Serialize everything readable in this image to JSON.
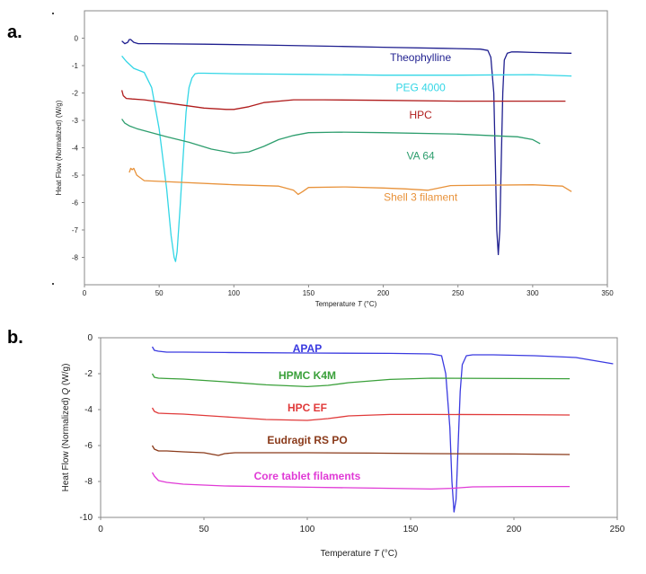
{
  "chart_data": [
    {
      "type": "line",
      "panel_label": "a.",
      "xlabel": "Temperature",
      "xlabel_var": "T",
      "xlabel_unit": "(°C)",
      "ylabel": "Heat Flow (Normalized) (W/g)",
      "xlim": [
        0,
        350
      ],
      "ylim": [
        -9,
        1
      ],
      "xticks": [
        0,
        50,
        100,
        150,
        200,
        250,
        300,
        350
      ],
      "yticks": [
        0,
        -1,
        -2,
        -3,
        -4,
        -5,
        -6,
        -7,
        -8
      ],
      "grid": false,
      "series": [
        {
          "name": "Theophylline",
          "color": "#1f1f8f",
          "label_at": [
            225,
            -0.7
          ],
          "x": [
            25,
            27,
            29,
            30,
            31,
            33,
            36,
            45,
            80,
            120,
            170,
            200,
            240,
            265,
            270,
            272,
            274,
            275,
            276,
            277,
            278,
            279,
            280,
            281,
            283,
            286,
            290,
            300,
            326
          ],
          "y": [
            -0.1,
            -0.2,
            -0.15,
            -0.05,
            -0.05,
            -0.15,
            -0.2,
            -0.2,
            -0.22,
            -0.25,
            -0.3,
            -0.33,
            -0.37,
            -0.4,
            -0.45,
            -0.7,
            -2.0,
            -4.5,
            -7.0,
            -7.9,
            -7.0,
            -4.5,
            -2.0,
            -0.8,
            -0.55,
            -0.5,
            -0.5,
            -0.52,
            -0.55
          ]
        },
        {
          "name": "PEG 4000",
          "color": "#33d6e6",
          "label_at": [
            225,
            -1.8
          ],
          "x": [
            25,
            28,
            33,
            40,
            45,
            50,
            55,
            58,
            60,
            61,
            62,
            64,
            66,
            68,
            70,
            72,
            74,
            76,
            80,
            100,
            150,
            200,
            250,
            300,
            326
          ],
          "y": [
            -0.65,
            -0.85,
            -1.1,
            -1.25,
            -1.8,
            -3.3,
            -5.5,
            -7.2,
            -8.0,
            -8.15,
            -7.8,
            -6.2,
            -4.4,
            -2.7,
            -1.8,
            -1.45,
            -1.3,
            -1.28,
            -1.28,
            -1.3,
            -1.32,
            -1.35,
            -1.35,
            -1.33,
            -1.38
          ]
        },
        {
          "name": "HPC",
          "color": "#b01c1c",
          "label_at": [
            225,
            -2.8
          ],
          "x": [
            25,
            26,
            28,
            32,
            40,
            60,
            80,
            95,
            100,
            110,
            120,
            140,
            160,
            200,
            250,
            300,
            322
          ],
          "y": [
            -1.9,
            -2.1,
            -2.2,
            -2.22,
            -2.25,
            -2.4,
            -2.55,
            -2.6,
            -2.6,
            -2.5,
            -2.35,
            -2.25,
            -2.25,
            -2.27,
            -2.3,
            -2.3,
            -2.3
          ]
        },
        {
          "name": "VA 64",
          "color": "#2e9e6e",
          "label_at": [
            225,
            -4.3
          ],
          "x": [
            25,
            27,
            30,
            35,
            45,
            55,
            70,
            85,
            100,
            110,
            120,
            130,
            140,
            150,
            170,
            200,
            250,
            290,
            300,
            305
          ],
          "y": [
            -2.95,
            -3.1,
            -3.2,
            -3.3,
            -3.45,
            -3.6,
            -3.8,
            -4.05,
            -4.2,
            -4.15,
            -3.95,
            -3.7,
            -3.55,
            -3.45,
            -3.43,
            -3.45,
            -3.5,
            -3.6,
            -3.7,
            -3.85
          ]
        },
        {
          "name": "Shell 3 filament",
          "color": "#e8923a",
          "label_at": [
            225,
            -5.8
          ],
          "x": [
            30,
            31,
            32,
            33,
            35,
            40,
            60,
            100,
            130,
            140,
            143,
            146,
            150,
            175,
            200,
            215,
            230,
            245,
            300,
            320,
            326
          ],
          "y": [
            -4.9,
            -4.75,
            -4.8,
            -4.75,
            -5.0,
            -5.2,
            -5.25,
            -5.35,
            -5.4,
            -5.55,
            -5.7,
            -5.6,
            -5.45,
            -5.43,
            -5.47,
            -5.5,
            -5.55,
            -5.38,
            -5.35,
            -5.4,
            -5.6
          ]
        }
      ]
    },
    {
      "type": "line",
      "panel_label": "b.",
      "xlabel": "Temperature",
      "xlabel_var": "T",
      "xlabel_unit": "(°C)",
      "ylabel": "Heat Flow (Normalized)",
      "ylabel_var": "Q",
      "ylabel_unit": "(W/g)",
      "xlim": [
        0,
        250
      ],
      "ylim": [
        -10,
        0
      ],
      "xticks": [
        0,
        50,
        100,
        150,
        200,
        250
      ],
      "yticks": [
        0,
        -2,
        -4,
        -6,
        -8,
        -10
      ],
      "grid": false,
      "series": [
        {
          "name": "APAP",
          "color": "#3a3ae0",
          "label_at": [
            100,
            -0.6
          ],
          "x": [
            25,
            26,
            28,
            32,
            40,
            60,
            100,
            140,
            160,
            165,
            167,
            169,
            170,
            171,
            172,
            173,
            174,
            175,
            177,
            180,
            190,
            210,
            230,
            248
          ],
          "y": [
            -0.5,
            -0.7,
            -0.75,
            -0.8,
            -0.8,
            -0.82,
            -0.85,
            -0.87,
            -0.9,
            -1.0,
            -2.0,
            -5.0,
            -8.0,
            -9.7,
            -9.0,
            -6.0,
            -3.0,
            -1.5,
            -1.0,
            -0.95,
            -0.95,
            -1.0,
            -1.1,
            -1.45
          ]
        },
        {
          "name": "HPMC K4M",
          "color": "#3aa03a",
          "label_at": [
            100,
            -2.1
          ],
          "x": [
            25,
            26,
            28,
            32,
            40,
            60,
            80,
            100,
            110,
            120,
            140,
            160,
            200,
            227
          ],
          "y": [
            -2.0,
            -2.2,
            -2.25,
            -2.27,
            -2.3,
            -2.45,
            -2.62,
            -2.72,
            -2.65,
            -2.5,
            -2.32,
            -2.25,
            -2.27,
            -2.28
          ]
        },
        {
          "name": "HPC EF",
          "color": "#e03a3a",
          "label_at": [
            100,
            -3.9
          ],
          "x": [
            25,
            26,
            28,
            32,
            40,
            60,
            80,
            100,
            110,
            120,
            140,
            160,
            200,
            227
          ],
          "y": [
            -3.9,
            -4.1,
            -4.2,
            -4.22,
            -4.25,
            -4.4,
            -4.55,
            -4.6,
            -4.5,
            -4.35,
            -4.27,
            -4.27,
            -4.28,
            -4.3
          ]
        },
        {
          "name": "Eudragit RS PO",
          "color": "#8a3a1a",
          "label_at": [
            100,
            -5.7
          ],
          "x": [
            25,
            26,
            28,
            32,
            40,
            50,
            57,
            60,
            65,
            80,
            100,
            130,
            160,
            200,
            227
          ],
          "y": [
            -6.0,
            -6.2,
            -6.3,
            -6.3,
            -6.35,
            -6.4,
            -6.55,
            -6.45,
            -6.4,
            -6.4,
            -6.4,
            -6.42,
            -6.45,
            -6.47,
            -6.5
          ]
        },
        {
          "name": "Core tablet filaments",
          "color": "#e03ad6",
          "label_at": [
            100,
            -7.7
          ],
          "x": [
            25,
            26,
            28,
            32,
            40,
            60,
            100,
            140,
            160,
            170,
            180,
            200,
            227
          ],
          "y": [
            -7.5,
            -7.7,
            -7.95,
            -8.05,
            -8.15,
            -8.25,
            -8.32,
            -8.38,
            -8.42,
            -8.38,
            -8.3,
            -8.28,
            -8.28
          ]
        }
      ]
    }
  ]
}
